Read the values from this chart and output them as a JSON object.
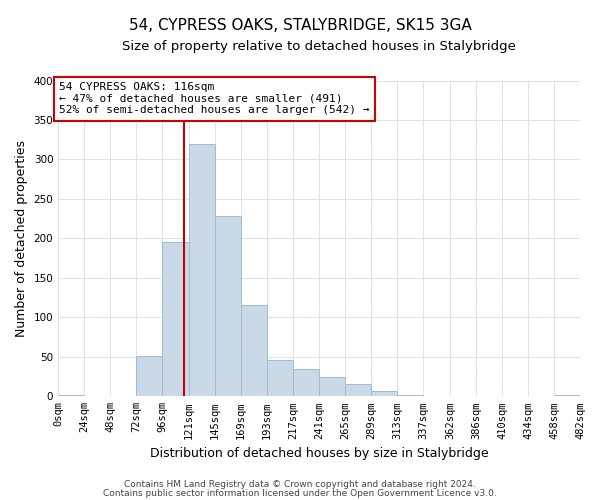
{
  "title": "54, CYPRESS OAKS, STALYBRIDGE, SK15 3GA",
  "subtitle": "Size of property relative to detached houses in Stalybridge",
  "xlabel": "Distribution of detached houses by size in Stalybridge",
  "ylabel": "Number of detached properties",
  "bar_edges": [
    0,
    24,
    48,
    72,
    96,
    121,
    145,
    169,
    193,
    217,
    241,
    265,
    289,
    313,
    337,
    362,
    386,
    410,
    434,
    458,
    482
  ],
  "bar_heights": [
    2,
    0,
    0,
    51,
    196,
    320,
    228,
    116,
    46,
    35,
    25,
    15,
    7,
    2,
    1,
    1,
    0,
    0,
    0,
    2
  ],
  "bar_color": "#c9d9e8",
  "bar_edgecolor": "#a0bcd0",
  "property_line_x": 116,
  "property_line_color": "#cc0000",
  "ylim": [
    0,
    400
  ],
  "yticks": [
    0,
    50,
    100,
    150,
    200,
    250,
    300,
    350,
    400
  ],
  "xtick_labels": [
    "0sqm",
    "24sqm",
    "48sqm",
    "72sqm",
    "96sqm",
    "121sqm",
    "145sqm",
    "169sqm",
    "193sqm",
    "217sqm",
    "241sqm",
    "265sqm",
    "289sqm",
    "313sqm",
    "337sqm",
    "362sqm",
    "386sqm",
    "410sqm",
    "434sqm",
    "458sqm",
    "482sqm"
  ],
  "annotation_title": "54 CYPRESS OAKS: 116sqm",
  "annotation_line1": "← 47% of detached houses are smaller (491)",
  "annotation_line2": "52% of semi-detached houses are larger (542) →",
  "annotation_box_color": "#ffffff",
  "annotation_box_edge": "#cc0000",
  "footer1": "Contains HM Land Registry data © Crown copyright and database right 2024.",
  "footer2": "Contains public sector information licensed under the Open Government Licence v3.0.",
  "bg_color": "#ffffff",
  "grid_color": "#d8e4ec",
  "title_fontsize": 11,
  "subtitle_fontsize": 9.5,
  "axis_label_fontsize": 9,
  "tick_fontsize": 7.5,
  "annotation_fontsize": 8,
  "footer_fontsize": 6.5
}
